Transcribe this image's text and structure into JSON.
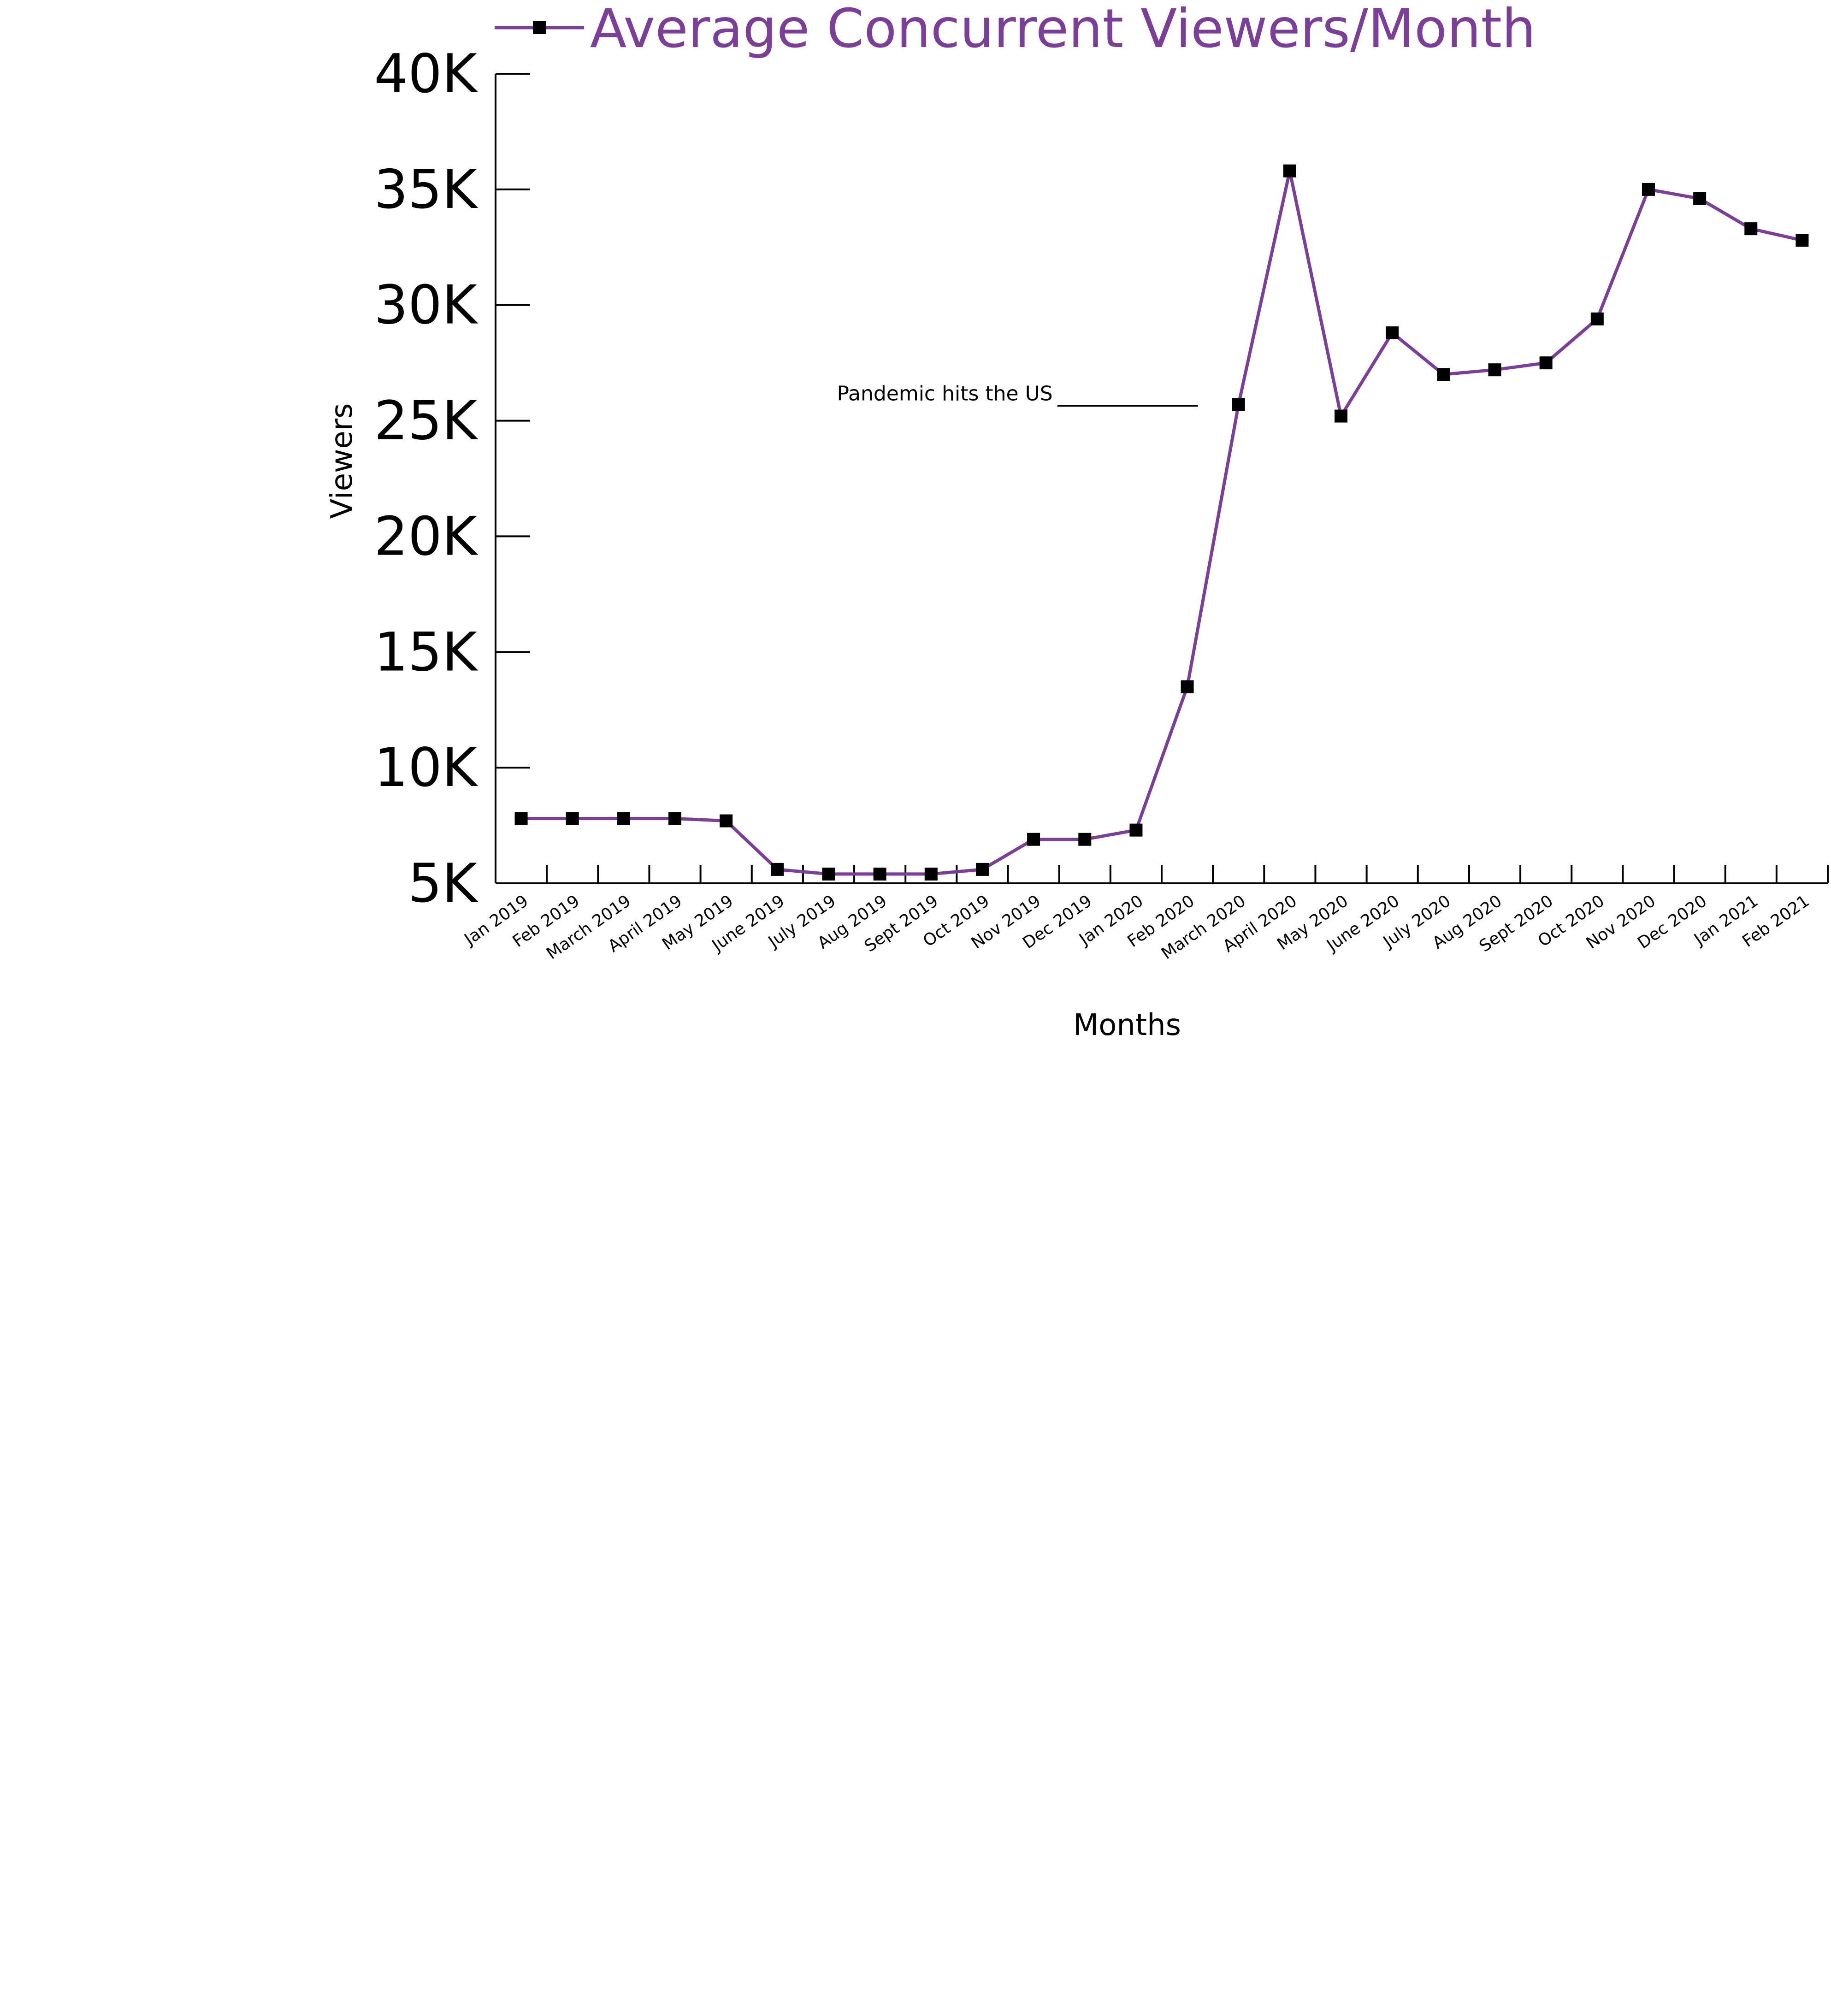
{
  "chart_data": {
    "type": "line",
    "legend": {
      "label": "Average Concurrent Viewers/Month",
      "placement": "top"
    },
    "xlabel": "Months",
    "ylabel": "Viewers",
    "ylim": [
      5000,
      40000
    ],
    "yticks": [
      5000,
      10000,
      15000,
      20000,
      25000,
      30000,
      35000,
      40000
    ],
    "ytick_labels": [
      "5K",
      "10K",
      "15K",
      "20K",
      "25K",
      "30K",
      "35K",
      "40K"
    ],
    "grid": false,
    "categories": [
      "Jan 2019",
      "Feb 2019",
      "March 2019",
      "April 2019",
      "May 2019",
      "June 2019",
      "July 2019",
      "Aug 2019",
      "Sept 2019",
      "Oct 2019",
      "Nov 2019",
      "Dec 2019",
      "Jan 2020",
      "Feb 2020",
      "March 2020",
      "April 2020",
      "May 2020",
      "June 2020",
      "July 2020",
      "Aug 2020",
      "Sept 2020",
      "Oct 2020",
      "Nov 2020",
      "Dec 2020",
      "Jan 2021",
      "Feb 2021"
    ],
    "series": [
      {
        "name": "Average Concurrent Viewers/Month",
        "color": "#7b3f98",
        "marker_color": "#000000",
        "marker": "square",
        "values": [
          7800,
          7800,
          7800,
          7800,
          7700,
          5600,
          5400,
          5400,
          5400,
          5600,
          6900,
          6900,
          7300,
          13500,
          25700,
          35800,
          25200,
          28800,
          27000,
          27200,
          27500,
          29400,
          35000,
          34600,
          33300,
          32800
        ]
      }
    ],
    "annotations": [
      {
        "text": "Pandemic hits the US",
        "x_category": "March 2020",
        "y": 25700
      }
    ]
  }
}
